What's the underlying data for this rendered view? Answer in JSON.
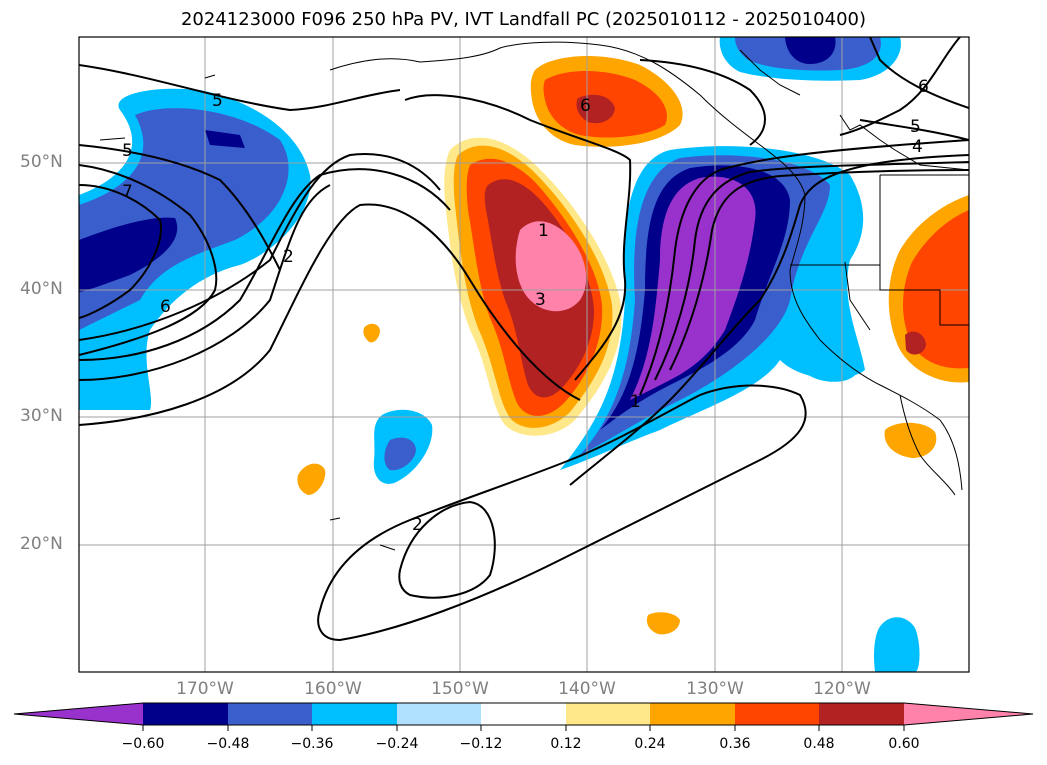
{
  "title": "2024123000 F096 250 hPa PV, IVT Landfall PC (2025010112 - 2025010400)",
  "map": {
    "lat_labels": [
      "50°N",
      "40°N",
      "30°N",
      "20°N"
    ],
    "lon_labels": [
      "170°W",
      "160°W",
      "150°W",
      "140°W",
      "130°W",
      "120°W"
    ],
    "contour_labels": [
      "5",
      "5",
      "7",
      "6",
      "2",
      "6",
      "5",
      "4",
      "1",
      "3",
      "1",
      "2",
      "6"
    ]
  },
  "colorbar": {
    "tick_labels": [
      "−0.60",
      "−0.48",
      "−0.36",
      "−0.24",
      "−0.12",
      "0.12",
      "0.24",
      "0.36",
      "0.48",
      "0.60"
    ],
    "colors": [
      "#9932cc",
      "#00008b",
      "#3a5fcd",
      "#00bfff",
      "#b0e0ff",
      "#ffffff",
      "#ffe88a",
      "#ffa500",
      "#ff4500",
      "#b22222",
      "#ff82ab"
    ]
  }
}
